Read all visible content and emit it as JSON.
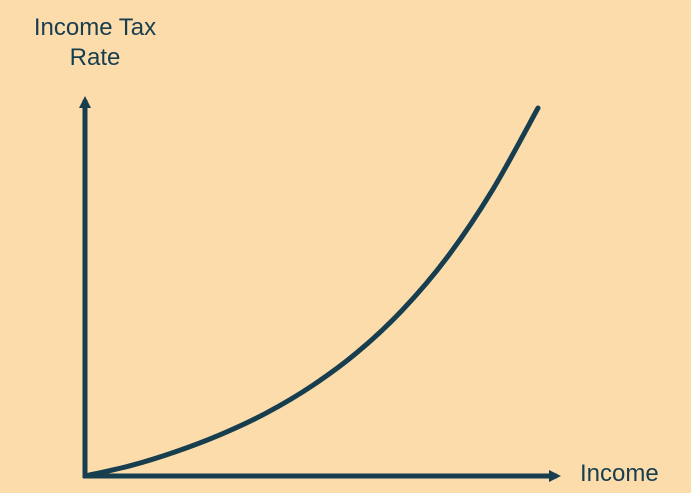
{
  "colors": {
    "background": "#fddcac",
    "ink": "#173e4e"
  },
  "chart_data": {
    "type": "line",
    "title": "",
    "xlabel": "Income",
    "ylabel_lines": [
      "Income Tax",
      "Rate"
    ],
    "grid": false,
    "ticks": false,
    "xlim": [
      0,
      10
    ],
    "ylim": [
      0,
      10
    ],
    "series": [
      {
        "shape": "convex-increasing",
        "x": [
          0,
          1,
          2,
          3,
          4,
          5,
          6,
          7,
          8,
          9,
          10
        ],
        "y": [
          0,
          0.28,
          0.66,
          1.13,
          1.71,
          2.44,
          3.35,
          4.5,
          5.95,
          7.78,
          10
        ]
      }
    ]
  }
}
